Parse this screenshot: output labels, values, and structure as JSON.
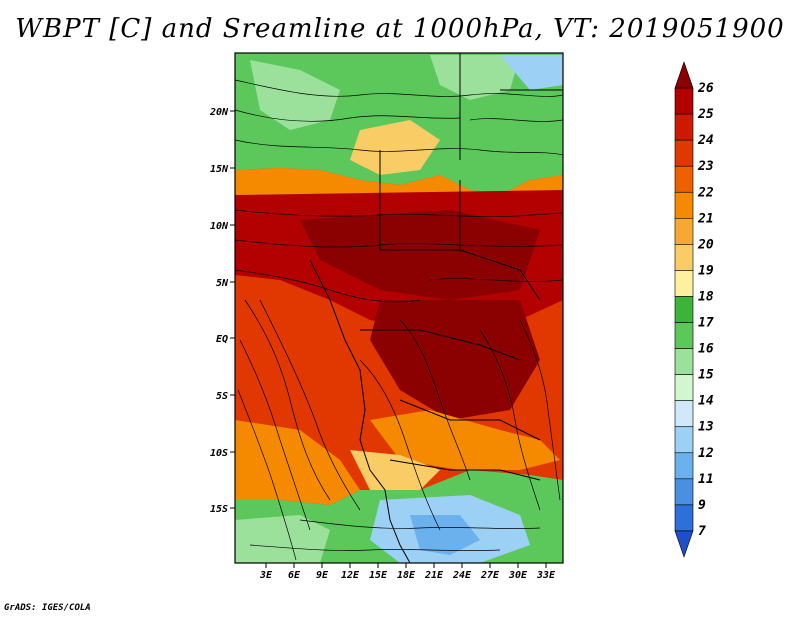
{
  "title": "WBPT [C] and Sreamline at 1000hPa, VT: 2019051900",
  "credit": "GrADS: IGES/COLA",
  "lon_labels": [
    "3E",
    "6E",
    "9E",
    "12E",
    "15E",
    "18E",
    "21E",
    "24E",
    "27E",
    "30E",
    "33E"
  ],
  "lat_labels": [
    "20N",
    "15N",
    "10N",
    "5N",
    "EQ",
    "5S",
    "10S",
    "15S"
  ],
  "colorbar": {
    "labels": [
      "26",
      "25",
      "24",
      "23",
      "22",
      "21",
      "20",
      "19",
      "18",
      "17",
      "16",
      "15",
      "14",
      "13",
      "12",
      "11",
      "9",
      "7"
    ],
    "colors": [
      "#8b0000",
      "#b30000",
      "#cc1a00",
      "#e03800",
      "#ee6000",
      "#f58a00",
      "#f7a833",
      "#f9cc66",
      "#fff0a0",
      "#3cb43c",
      "#5cc85c",
      "#9be19b",
      "#d2f5d2",
      "#cfe8fa",
      "#9cd0f5",
      "#6bb1ed",
      "#4a90e2",
      "#2e6fd9",
      "#1e4fc8"
    ]
  },
  "map_colors": {
    "hot_core": "#8b0000",
    "hot": "#b30000",
    "warm": "#e03800",
    "orange": "#f58a00",
    "yellow": "#f9cc66",
    "green": "#5cc85c",
    "light_green": "#9be19b",
    "blue": "#9cd0f5"
  }
}
